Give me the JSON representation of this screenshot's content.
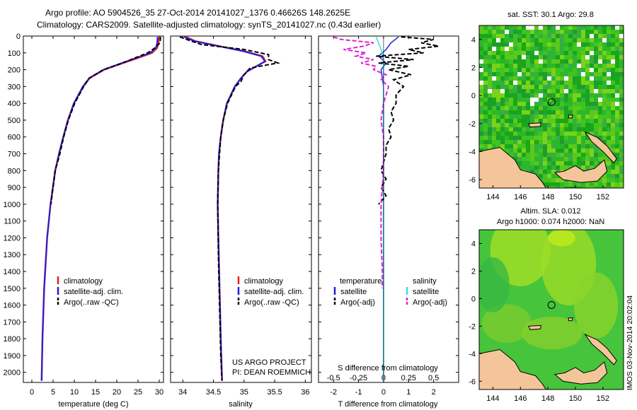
{
  "header": {
    "line1": "Argo profile: AO 5904526_35 27-Oct-2014 20141027_1376 0.46626S 148.2625E",
    "line2": "Climatology: CARS2009. Satellite-adjusted climatology: synTS_20141027.nc (0.43d earlier)"
  },
  "colors": {
    "climatology": "#e8201c",
    "satellite": "#1f1fe6",
    "argo": "#000000",
    "sat_salinity": "#30e0e8",
    "argo_salinity_diff": "#e020d8",
    "land": "#f5c59a",
    "sst_green": "#22b022",
    "sla_green": "#46c43c"
  },
  "chart_data": [
    {
      "id": "temperature",
      "type": "line",
      "xlabel": "temperature (deg C)",
      "xlim": [
        -2,
        31
      ],
      "xticks": [
        0,
        5,
        10,
        15,
        20,
        25,
        30
      ],
      "ylim": [
        0,
        2060
      ],
      "yticks": [
        0,
        100,
        200,
        300,
        400,
        500,
        600,
        700,
        800,
        900,
        1000,
        1100,
        1200,
        1300,
        1400,
        1500,
        1600,
        1700,
        1800,
        1900,
        2000
      ],
      "legend": [
        "climatology",
        "satellite-adj. clim.",
        "Argo(..raw -QC)"
      ],
      "series": [
        {
          "name": "climatology",
          "depth": [
            5,
            40,
            70,
            100,
            130,
            160,
            200,
            250,
            300,
            400,
            500,
            600,
            700,
            800,
            1000,
            1200,
            1500,
            1800,
            2050
          ],
          "values": [
            29.9,
            29.8,
            29.5,
            28.3,
            25.0,
            21.5,
            17.0,
            13.6,
            12.1,
            9.9,
            8.5,
            7.4,
            6.4,
            5.5,
            4.4,
            3.6,
            2.9,
            2.5,
            2.3
          ]
        },
        {
          "name": "satellite-adj. clim.",
          "depth": [
            5,
            40,
            70,
            100,
            130,
            160,
            200,
            250,
            300,
            400,
            500,
            600,
            700,
            800,
            1000,
            1200,
            1500,
            1800,
            2050
          ],
          "values": [
            29.6,
            29.5,
            29.2,
            27.9,
            24.6,
            21.2,
            16.8,
            13.5,
            12.0,
            9.9,
            8.5,
            7.4,
            6.4,
            5.5,
            4.4,
            3.6,
            2.9,
            2.5,
            2.3
          ]
        },
        {
          "name": "Argo(..raw -QC)",
          "depth": [
            5,
            40,
            70,
            100,
            130,
            160,
            200,
            250,
            300,
            400,
            500,
            600,
            700,
            800,
            1000
          ],
          "values": [
            30.3,
            30.2,
            29.0,
            27.3,
            24.3,
            21.4,
            16.9,
            13.5,
            12.2,
            10.1,
            8.6,
            7.5,
            6.6,
            5.5,
            4.5
          ]
        }
      ]
    },
    {
      "id": "salinity",
      "type": "line",
      "xlabel": "salinity",
      "xlim": [
        33.8,
        36.1
      ],
      "xticks": [
        34,
        34.5,
        35,
        35.5,
        36
      ],
      "ylim": [
        0,
        2060
      ],
      "legend": [
        "climatology",
        "satellite-adj. clim.",
        "Argo(..raw -QC)"
      ],
      "annotation": [
        "US ARGO PROJECT",
        "PI: DEAN ROEMMICH"
      ],
      "series": [
        {
          "name": "climatology",
          "depth": [
            5,
            30,
            60,
            90,
            120,
            150,
            180,
            210,
            250,
            300,
            400,
            500,
            600,
            700,
            800,
            1000,
            1200,
            1500,
            1800,
            2050
          ],
          "values": [
            34.05,
            34.2,
            34.6,
            35.0,
            35.3,
            35.35,
            35.2,
            35.05,
            34.95,
            34.85,
            34.72,
            34.66,
            34.62,
            34.59,
            34.58,
            34.57,
            34.58,
            34.6,
            34.62,
            34.64
          ]
        },
        {
          "name": "satellite-adj. clim.",
          "depth": [
            5,
            30,
            60,
            90,
            120,
            150,
            180,
            210,
            250,
            300,
            400,
            500,
            600,
            700,
            800,
            1000,
            1200,
            1500,
            1800,
            2050
          ],
          "values": [
            34.02,
            34.18,
            34.58,
            34.98,
            35.28,
            35.34,
            35.2,
            35.05,
            34.95,
            34.85,
            34.72,
            34.66,
            34.62,
            34.59,
            34.58,
            34.57,
            34.58,
            34.6,
            34.62,
            34.64
          ]
        },
        {
          "name": "Argo(..raw -QC)",
          "depth": [
            5,
            25,
            50,
            80,
            110,
            140,
            160,
            190,
            230,
            270,
            300,
            400,
            500,
            600,
            700,
            800,
            1000,
            1300,
            1600,
            1900,
            2050
          ],
          "values": [
            33.95,
            34.1,
            34.3,
            35.0,
            35.4,
            35.4,
            35.55,
            35.1,
            35.0,
            34.95,
            34.86,
            34.73,
            34.66,
            34.62,
            34.6,
            34.58,
            34.57,
            34.58,
            34.6,
            34.62,
            34.64
          ]
        }
      ]
    },
    {
      "id": "difference",
      "type": "line",
      "xlabel": "T difference from climatology",
      "x2label": "S difference from climatology",
      "xlim": [
        -2.6,
        3.0
      ],
      "xticks": [
        -2,
        -1,
        0,
        1,
        2
      ],
      "x2ticks": [
        {
          "label": "-0.5",
          "t": -2
        },
        {
          "label": "-0.25",
          "t": -1
        },
        {
          "label": "0",
          "t": 0
        },
        {
          "label": "0.25",
          "t": 1
        },
        {
          "label": "0.5",
          "t": 2
        }
      ],
      "ylim": [
        0,
        2060
      ],
      "legend_temperature_title": "temperature",
      "legend_salinity_title": "salinity",
      "legend_temperature": [
        "satellite",
        "Argo(-adj)"
      ],
      "legend_salinity": [
        "satellite",
        "Argo(-adj)"
      ],
      "series": [
        {
          "name": "T satellite",
          "depth": [
            5,
            40,
            80,
            120,
            160,
            200,
            300,
            400,
            600,
            800,
            1000,
            1500,
            2050
          ],
          "values": [
            0.6,
            0.3,
            0.1,
            -0.2,
            0.1,
            -0.1,
            0.0,
            0.0,
            0.0,
            0.0,
            0.0,
            0.0,
            0.0
          ]
        },
        {
          "name": "S satellite",
          "depth": [
            5,
            40,
            80,
            120,
            160,
            200,
            300,
            400,
            600,
            800,
            1000,
            1500,
            2050
          ],
          "values": [
            -0.3,
            -0.2,
            -0.1,
            0.0,
            0.0,
            0.0,
            0.0,
            0.0,
            0.0,
            0.0,
            0.0,
            0.0,
            0.0
          ]
        },
        {
          "name": "T Argo(-adj)",
          "depth": [
            5,
            20,
            40,
            60,
            80,
            100,
            120,
            140,
            160,
            180,
            200,
            230,
            260,
            300,
            350,
            400,
            450,
            500,
            550,
            600,
            650,
            700,
            750,
            800,
            850,
            900,
            950,
            1000
          ],
          "values": [
            0.7,
            2.0,
            1.5,
            2.2,
            1.0,
            1.6,
            -0.3,
            1.2,
            -0.2,
            1.0,
            0.2,
            1.1,
            0.4,
            0.8,
            0.5,
            0.5,
            0.3,
            0.4,
            0.2,
            0.3,
            0.1,
            0.1,
            0.0,
            -0.1,
            0.1,
            -0.1,
            0.1,
            -0.2
          ]
        },
        {
          "name": "S Argo(-adj)",
          "depth": [
            5,
            20,
            40,
            60,
            80,
            100,
            120,
            140,
            160,
            180,
            200,
            230,
            260,
            300,
            400,
            500,
            600,
            800,
            1000,
            1200,
            1400,
            1500
          ],
          "values": [
            -2.0,
            -1.7,
            -0.4,
            -0.8,
            -1.6,
            -0.7,
            -1.1,
            -0.4,
            -0.9,
            -0.3,
            -0.4,
            0.1,
            -0.1,
            0.2,
            0.0,
            -0.1,
            0.0,
            0.0,
            -0.1,
            -0.1,
            -0.05,
            -0.05
          ]
        }
      ]
    },
    {
      "id": "sst_map",
      "type": "heatmap",
      "title": "sat. SST: 30.1  Argo: 29.8",
      "xticks": [
        144,
        146,
        148,
        150,
        152
      ],
      "yticks": [
        4,
        2,
        0,
        -2,
        -4,
        -6
      ],
      "xlim": [
        143,
        153.5
      ],
      "ylim": [
        -6.6,
        5
      ],
      "argo_position": [
        148.2625,
        -0.46626
      ]
    },
    {
      "id": "sla_map",
      "type": "heatmap",
      "title_line1": "Altim. SLA: 0.012",
      "title_line2": "Argo h1000: 0.074  h2000: NaN",
      "xticks": [
        144,
        146,
        148,
        150,
        152
      ],
      "yticks": [
        4,
        2,
        0,
        -2,
        -4,
        -6
      ],
      "xlim": [
        143,
        153.5
      ],
      "ylim": [
        -6.6,
        5
      ],
      "argo_position": [
        148.2625,
        -0.46626
      ]
    }
  ],
  "footer_stamp": "IMOS 03-Nov-2014 20:02:04"
}
